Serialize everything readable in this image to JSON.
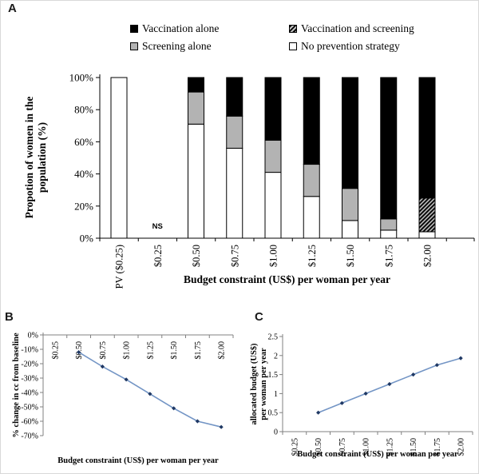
{
  "figure": {
    "panel_a_label": "A",
    "panel_b_label": "B",
    "panel_c_label": "C"
  },
  "colors": {
    "line": "#7395c5",
    "marker": "#1f3864",
    "bar_black": "#000000",
    "bar_gray": "#b3b3b3",
    "bar_white": "#ffffff",
    "axis_a": "#000000",
    "axis_bc": "#808080"
  },
  "chart_data": [
    {
      "id": "A",
      "type": "bar",
      "stacked": true,
      "xlabel": "Budget  constraint (US$) per woman per year",
      "ylabel": "Propotion of women in the population (%)",
      "ylabel_lines": [
        "Propotion of women in the",
        "population (%)"
      ],
      "ylim": [
        0,
        100
      ],
      "ytick_values": [
        0,
        20,
        40,
        60,
        80,
        100
      ],
      "ytick_labels": [
        "0%",
        "20%",
        "40%",
        "60%",
        "80%",
        "100%"
      ],
      "categories": [
        "PV ($0.25)",
        "$0.25",
        "$0.50",
        "$0.75",
        "$1.00",
        "$1.25",
        "$1.50",
        "$1.75",
        "$2.00"
      ],
      "series": [
        {
          "name": "No prevention strategy",
          "fill": "white",
          "values": [
            100,
            null,
            71,
            56,
            41,
            26,
            11,
            5,
            4
          ]
        },
        {
          "name": "Screening alone",
          "fill": "gray",
          "values": [
            0,
            null,
            20,
            20,
            20,
            20,
            20,
            7,
            0
          ]
        },
        {
          "name": "Vaccination and screening",
          "fill": "hatch",
          "values": [
            0,
            null,
            0,
            0,
            0,
            0,
            0,
            0,
            21
          ]
        },
        {
          "name": "Vaccination alone",
          "fill": "black",
          "values": [
            0,
            null,
            9,
            24,
            39,
            54,
            69,
            88,
            75
          ]
        }
      ],
      "annotations": [
        {
          "text": "NS",
          "category_index": 1
        }
      ],
      "legend": [
        {
          "label": "Vaccination alone",
          "swatch": "black"
        },
        {
          "label": "Vaccination and screening",
          "swatch": "hatch"
        },
        {
          "label": "Screening alone",
          "swatch": "gray"
        },
        {
          "label": "No prevention strategy",
          "swatch": "white"
        }
      ],
      "legend_position": "top"
    },
    {
      "id": "B",
      "type": "line",
      "xlabel": "Budget constraint (US$) per woman per year",
      "ylabel": "% change in cc from baseline",
      "ylim": [
        -70,
        0
      ],
      "ytick_values": [
        0,
        -10,
        -20,
        -30,
        -40,
        -50,
        -60,
        -70
      ],
      "ytick_labels": [
        "0%",
        "-10%",
        "-20%",
        "-30%",
        "-40%",
        "-50%",
        "-60%",
        "-70%"
      ],
      "categories": [
        "$0.25",
        "$0.50",
        "$0.75",
        "$1.00",
        "$1.25",
        "$1.50",
        "$1.75",
        "$2.00"
      ],
      "values": [
        null,
        -12,
        -22,
        -31,
        -41,
        -51,
        -60,
        -64
      ],
      "grid": false,
      "legend_position": "none"
    },
    {
      "id": "C",
      "type": "line",
      "xlabel": "Budget constraint (US$) per woman per year",
      "ylabel": "allocated budget (US$) per woman per year",
      "ylabel_lines": [
        "allocated budget (US$)",
        "per woman per year"
      ],
      "ylim": [
        0,
        2.5
      ],
      "ytick_values": [
        0,
        0.5,
        1,
        1.5,
        2,
        2.5
      ],
      "ytick_labels": [
        "0",
        "0.5",
        "1",
        "1.5",
        "2",
        "2.5"
      ],
      "categories": [
        "$0.25",
        "$0.50",
        "$0.75",
        "$1.00",
        "$1.25",
        "$1.50",
        "$1.75",
        "$2.00"
      ],
      "values": [
        null,
        0.5,
        0.75,
        1.0,
        1.25,
        1.5,
        1.75,
        1.93
      ],
      "grid": false,
      "legend_position": "none"
    }
  ]
}
